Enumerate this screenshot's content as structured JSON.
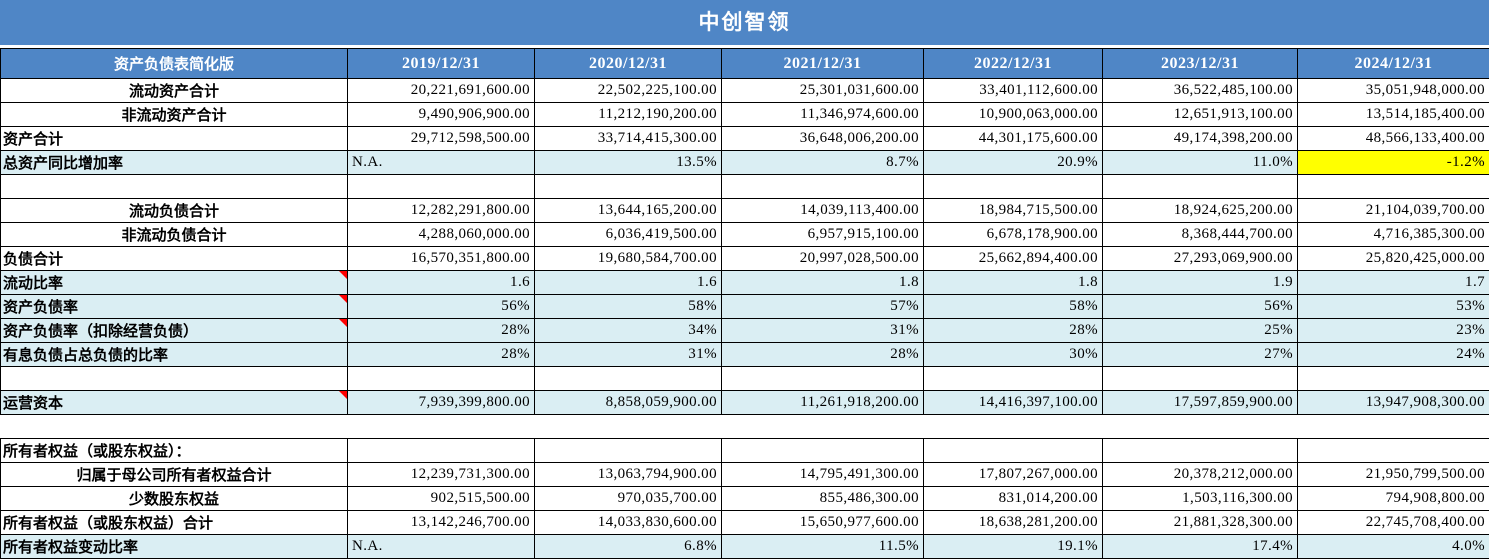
{
  "title": "中创智领",
  "colors": {
    "header_blue": "#4f86c6",
    "band_blue": "#daeef3",
    "highlight_yellow": "#ffff00",
    "marker_red": "#ff0000"
  },
  "header": {
    "label": "资产负债表简化版",
    "dates": [
      "2019/12/31",
      "2020/12/31",
      "2021/12/31",
      "2022/12/31",
      "2023/12/31",
      "2024/12/31"
    ]
  },
  "rows": [
    {
      "id": "total-current-assets",
      "label": "流动资产合计",
      "label_align": "center",
      "band": false,
      "marker": false,
      "values": [
        "20,221,691,600.00",
        "22,502,225,100.00",
        "25,301,031,600.00",
        "33,401,112,600.00",
        "36,522,485,100.00",
        "35,051,948,000.00"
      ]
    },
    {
      "id": "total-non-current-assets",
      "label": "非流动资产合计",
      "label_align": "center",
      "band": false,
      "marker": false,
      "values": [
        "9,490,906,900.00",
        "11,212,190,200.00",
        "11,346,974,600.00",
        "10,900,063,000.00",
        "12,651,913,100.00",
        "13,514,185,400.00"
      ]
    },
    {
      "id": "total-assets",
      "label": "资产合计",
      "label_align": "left",
      "band": false,
      "marker": false,
      "values": [
        "29,712,598,500.00",
        "33,714,415,300.00",
        "36,648,006,200.00",
        "44,301,175,600.00",
        "49,174,398,200.00",
        "48,566,133,400.00"
      ]
    },
    {
      "id": "total-assets-yoy-growth",
      "label": "总资产同比增加率",
      "label_align": "left",
      "band": true,
      "marker": false,
      "highlight_col": 5,
      "values": [
        "N.A.",
        "13.5%",
        "8.7%",
        "20.9%",
        "11.0%",
        "-1.2%"
      ]
    },
    {
      "id": "empty-1",
      "label": "",
      "label_align": "left",
      "band": false,
      "marker": false,
      "values": [
        "",
        "",
        "",
        "",
        "",
        ""
      ]
    },
    {
      "id": "total-current-liabilities",
      "label": "流动负债合计",
      "label_align": "center",
      "band": false,
      "marker": false,
      "values": [
        "12,282,291,800.00",
        "13,644,165,200.00",
        "14,039,113,400.00",
        "18,984,715,500.00",
        "18,924,625,200.00",
        "21,104,039,700.00"
      ]
    },
    {
      "id": "total-non-current-liabilities",
      "label": "非流动负债合计",
      "label_align": "center",
      "band": false,
      "marker": false,
      "values": [
        "4,288,060,000.00",
        "6,036,419,500.00",
        "6,957,915,100.00",
        "6,678,178,900.00",
        "8,368,444,700.00",
        "4,716,385,300.00"
      ]
    },
    {
      "id": "total-liabilities",
      "label": "负债合计",
      "label_align": "left",
      "band": false,
      "marker": false,
      "values": [
        "16,570,351,800.00",
        "19,680,584,700.00",
        "20,997,028,500.00",
        "25,662,894,400.00",
        "27,293,069,900.00",
        "25,820,425,000.00"
      ]
    },
    {
      "id": "current-ratio",
      "label": "流动比率",
      "label_align": "left",
      "band": true,
      "marker": true,
      "values": [
        "1.6",
        "1.6",
        "1.8",
        "1.8",
        "1.9",
        "1.7"
      ]
    },
    {
      "id": "debt-to-asset-ratio",
      "label": "资产负债率",
      "label_align": "left",
      "band": true,
      "marker": true,
      "values": [
        "56%",
        "58%",
        "57%",
        "58%",
        "56%",
        "53%"
      ]
    },
    {
      "id": "debt-to-asset-ratio-excl-operating",
      "label": "资产负债率（扣除经营负债）",
      "label_align": "left",
      "band": true,
      "marker": true,
      "values": [
        "28%",
        "34%",
        "31%",
        "28%",
        "25%",
        "23%"
      ]
    },
    {
      "id": "interest-bearing-debt-ratio",
      "label": "有息负债占总负债的比率",
      "label_align": "left",
      "band": true,
      "marker": false,
      "values": [
        "28%",
        "31%",
        "28%",
        "30%",
        "27%",
        "24%"
      ]
    },
    {
      "id": "empty-2",
      "label": "",
      "label_align": "left",
      "band": false,
      "marker": false,
      "values": [
        "",
        "",
        "",
        "",
        "",
        ""
      ]
    },
    {
      "id": "working-capital",
      "label": "运营资本",
      "label_align": "left",
      "band": true,
      "marker": true,
      "values": [
        "7,939,399,800.00",
        "8,858,059,900.00",
        "11,261,918,200.00",
        "14,416,397,100.00",
        "17,597,859,900.00",
        "13,947,908,300.00"
      ]
    },
    {
      "id": "empty-3",
      "label": "",
      "label_align": "left",
      "band": false,
      "marker": false,
      "noborder": true,
      "values": [
        "",
        "",
        "",
        "",
        "",
        ""
      ]
    },
    {
      "id": "owners-equity-heading",
      "label": "所有者权益（或股东权益）：",
      "label_align": "left",
      "band": false,
      "marker": false,
      "values": [
        "",
        "",
        "",
        "",
        "",
        ""
      ]
    },
    {
      "id": "equity-attributable-to-parent",
      "label": "归属于母公司所有者权益合计",
      "label_align": "center",
      "band": false,
      "marker": false,
      "values": [
        "12,239,731,300.00",
        "13,063,794,900.00",
        "14,795,491,300.00",
        "17,807,267,000.00",
        "20,378,212,000.00",
        "21,950,799,500.00"
      ]
    },
    {
      "id": "minority-interest",
      "label": "少数股东权益",
      "label_align": "center",
      "band": false,
      "marker": false,
      "values": [
        "902,515,500.00",
        "970,035,700.00",
        "855,486,300.00",
        "831,014,200.00",
        "1,503,116,300.00",
        "794,908,800.00"
      ]
    },
    {
      "id": "total-owners-equity",
      "label": "所有者权益（或股东权益）合计",
      "label_align": "left",
      "band": false,
      "marker": false,
      "values": [
        "13,142,246,700.00",
        "14,033,830,600.00",
        "15,650,977,600.00",
        "18,638,281,200.00",
        "21,881,328,300.00",
        "22,745,708,400.00"
      ]
    },
    {
      "id": "owners-equity-change-ratio",
      "label": "所有者权益变动比率",
      "label_align": "left",
      "band": true,
      "marker": false,
      "values": [
        "N.A.",
        "6.8%",
        "11.5%",
        "19.1%",
        "17.4%",
        "4.0%"
      ]
    }
  ]
}
